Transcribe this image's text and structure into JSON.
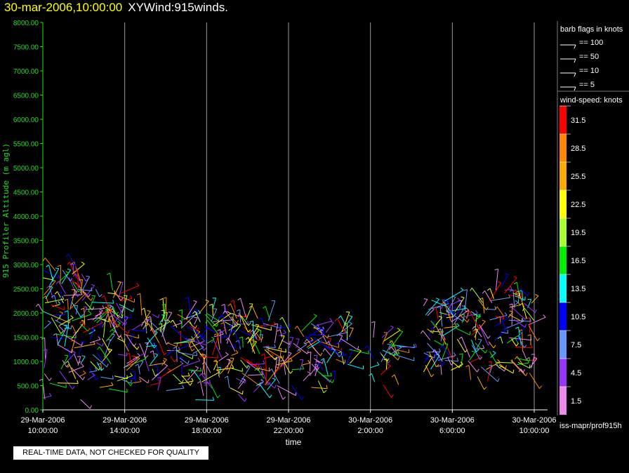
{
  "header": {
    "date": "30-mar-2006,10:00:00",
    "title": "XYWind:915winds."
  },
  "notice": "REAL-TIME DATA, NOT CHECKED FOR QUALITY",
  "source": "iss-mapr/prof915h",
  "barb_legend": {
    "title": "barb flags in knots",
    "entries": [
      "== 100",
      "== 50",
      "== 10",
      "== 5"
    ]
  },
  "speed_legend": {
    "title": "wind-speed: knots",
    "labels": [
      "31.5",
      "28.5",
      "25.5",
      "22.5",
      "19.5",
      "16.5",
      "13.5",
      "10.5",
      "7.5",
      "4.5",
      "1.5"
    ],
    "colors": [
      "#ff0000",
      "#ff8800",
      "#ffaa00",
      "#ffff00",
      "#aaff33",
      "#00ee00",
      "#00ffff",
      "#0000ff",
      "#6699ff",
      "#9933ff",
      "#ee88ee"
    ]
  },
  "chart_data": {
    "type": "scatter",
    "title": "XYWind:915winds.",
    "xlabel": "time",
    "ylabel": "915 Profiler Altitude (m agl)",
    "ylim": [
      0,
      8000
    ],
    "y_ticks": [
      "0.00",
      "500.00",
      "1000.00",
      "1500.00",
      "2000.00",
      "2500.00",
      "3000.00",
      "3500.00",
      "4000.00",
      "4500.00",
      "5000.00",
      "5500.00",
      "6000.00",
      "6500.00",
      "7000.00",
      "7500.00",
      "8000.00"
    ],
    "x_ticks": [
      {
        "date": "29-Mar-2006",
        "time": "10:00:00"
      },
      {
        "date": "29-Mar-2006",
        "time": "14:00:00"
      },
      {
        "date": "29-Mar-2006",
        "time": "18:00:00"
      },
      {
        "date": "29-Mar-2006",
        "time": "22:00:00"
      },
      {
        "date": "30-Mar-2006",
        "time": "2:00:00"
      },
      {
        "date": "30-Mar-2006",
        "time": "6:00:00"
      },
      {
        "date": "30-Mar-2006",
        "time": "10:00:00"
      }
    ],
    "xlim": [
      "29-Mar-2006 10:00:00",
      "30-Mar-2006 10:00:00"
    ],
    "grid": "vertical",
    "series": [
      {
        "time_range": [
          "29-Mar-2006 10:00:00",
          "29-Mar-2006 12:00:00"
        ],
        "alt_range": [
          200,
          2900
        ]
      },
      {
        "time_range": [
          "29-Mar-2006 12:00:00",
          "29-Mar-2006 14:00:00"
        ],
        "alt_range": [
          400,
          2500
        ]
      },
      {
        "time_range": [
          "29-Mar-2006 14:00:00",
          "29-Mar-2006 16:00:00"
        ],
        "alt_range": [
          400,
          2000
        ]
      },
      {
        "time_range": [
          "29-Mar-2006 16:00:00",
          "29-Mar-2006 18:00:00"
        ],
        "alt_range": [
          200,
          2000
        ]
      },
      {
        "time_range": [
          "29-Mar-2006 18:00:00",
          "29-Mar-2006 20:00:00"
        ],
        "alt_range": [
          200,
          2100
        ]
      },
      {
        "time_range": [
          "29-Mar-2006 20:00:00",
          "29-Mar-2006 22:00:00"
        ],
        "alt_range": [
          300,
          1900
        ]
      },
      {
        "time_range": [
          "29-Mar-2006 22:00:00",
          "29-Mar-2006 23:30:00"
        ],
        "alt_range": [
          400,
          1800
        ]
      },
      {
        "time_range": [
          "29-Mar-2006 23:30:00",
          "30-Mar-2006 01:00:00"
        ],
        "alt_range": [
          600,
          1800
        ]
      },
      {
        "time_range": [
          "30-Mar-2006 02:00:00",
          "30-Mar-2006 03:30:00"
        ],
        "alt_range": [
          500,
          1500
        ]
      },
      {
        "time_range": [
          "30-Mar-2006 04:30:00",
          "30-Mar-2006 08:00:00"
        ],
        "alt_range": [
          600,
          2300
        ]
      },
      {
        "time_range": [
          "30-Mar-2006 08:00:00",
          "30-Mar-2006 10:00:00"
        ],
        "alt_range": [
          700,
          2600
        ]
      }
    ]
  }
}
